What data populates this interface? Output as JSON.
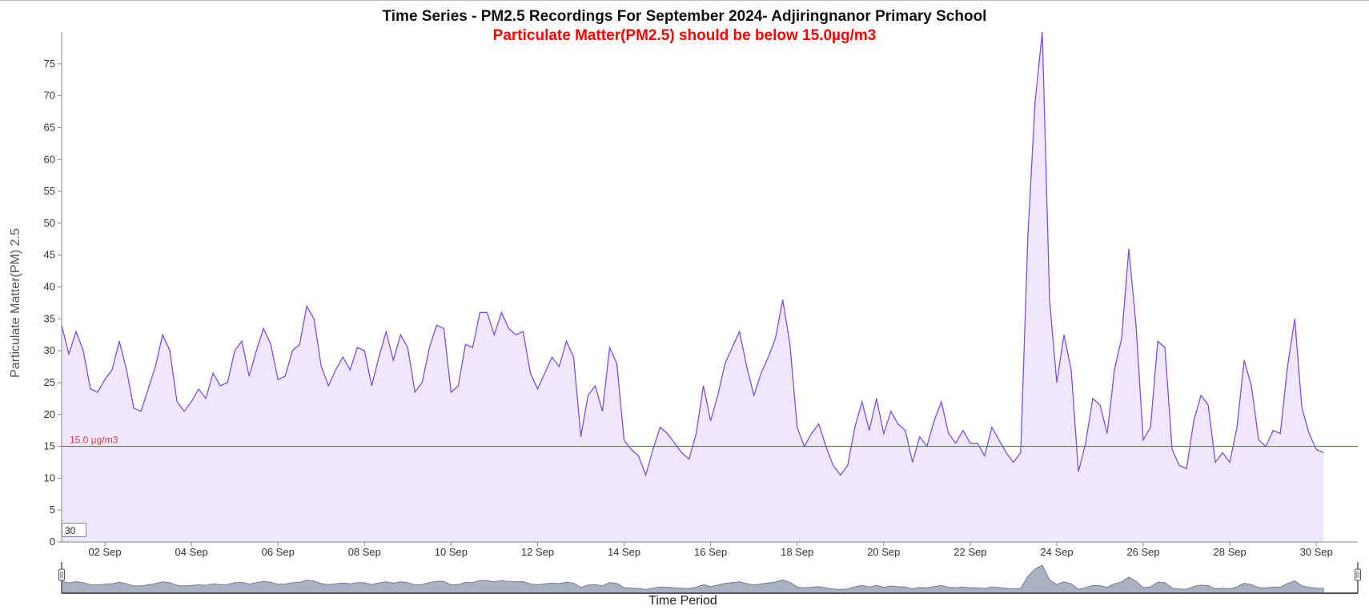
{
  "chart_data": {
    "type": "area",
    "title": "Time Series - PM2.5 Recordings For September 2024- Adjiringnanor Primary School",
    "subtitle": "Particulate Matter(PM2.5) should be below 15.0µg/m3",
    "xlabel": "Time Period",
    "ylabel": "Particulate Matter(PM) 2.5",
    "xlim": [
      "2024-09-01T00:00",
      "2024-09-30T23:00"
    ],
    "ylim": [
      0,
      80
    ],
    "yticks": [
      0,
      5,
      10,
      15,
      20,
      25,
      30,
      35,
      40,
      45,
      50,
      55,
      60,
      65,
      70,
      75
    ],
    "xticks": [
      "02 Sep",
      "04 Sep",
      "06 Sep",
      "08 Sep",
      "10 Sep",
      "12 Sep",
      "14 Sep",
      "16 Sep",
      "18 Sep",
      "20 Sep",
      "22 Sep",
      "24 Sep",
      "26 Sep",
      "28 Sep",
      "30 Sep"
    ],
    "threshold": {
      "value": 15.0,
      "label": "15.0 µg/m3",
      "color": "#e8394b"
    },
    "grid": false,
    "colors": {
      "line": "#7b4ff0",
      "fill": "#efe8fd",
      "subtitle": "#ff0000",
      "navigator_fill": "#a9b2c2",
      "navigator_line": "#6f7f98"
    },
    "series": [
      {
        "points": [
          [
            "2024-09-01T00:00",
            34
          ],
          [
            "2024-09-01T04:00",
            29.5
          ],
          [
            "2024-09-01T08:00",
            33
          ],
          [
            "2024-09-01T12:00",
            30
          ],
          [
            "2024-09-01T16:00",
            24
          ],
          [
            "2024-09-01T20:00",
            23.5
          ],
          [
            "2024-09-02T00:00",
            25.5
          ],
          [
            "2024-09-02T04:00",
            27
          ],
          [
            "2024-09-02T08:00",
            31.5
          ],
          [
            "2024-09-02T12:00",
            27
          ],
          [
            "2024-09-02T16:00",
            21
          ],
          [
            "2024-09-02T20:00",
            20.5
          ],
          [
            "2024-09-03T00:00",
            24
          ],
          [
            "2024-09-03T04:00",
            27.5
          ],
          [
            "2024-09-03T08:00",
            32.5
          ],
          [
            "2024-09-03T12:00",
            30
          ],
          [
            "2024-09-03T16:00",
            22
          ],
          [
            "2024-09-03T20:00",
            20.5
          ],
          [
            "2024-09-04T00:00",
            22
          ],
          [
            "2024-09-04T04:00",
            24
          ],
          [
            "2024-09-04T08:00",
            22.5
          ],
          [
            "2024-09-04T12:00",
            26.5
          ],
          [
            "2024-09-04T16:00",
            24.5
          ],
          [
            "2024-09-04T20:00",
            25
          ],
          [
            "2024-09-05T00:00",
            30
          ],
          [
            "2024-09-05T04:00",
            31.5
          ],
          [
            "2024-09-05T08:00",
            26
          ],
          [
            "2024-09-05T12:00",
            30
          ],
          [
            "2024-09-05T16:00",
            33.5
          ],
          [
            "2024-09-05T20:00",
            31
          ],
          [
            "2024-09-06T00:00",
            25.5
          ],
          [
            "2024-09-06T04:00",
            26
          ],
          [
            "2024-09-06T08:00",
            30
          ],
          [
            "2024-09-06T12:00",
            31
          ],
          [
            "2024-09-06T16:00",
            37
          ],
          [
            "2024-09-06T20:00",
            35
          ],
          [
            "2024-09-07T00:00",
            27.5
          ],
          [
            "2024-09-07T04:00",
            24.5
          ],
          [
            "2024-09-07T08:00",
            27
          ],
          [
            "2024-09-07T12:00",
            29
          ],
          [
            "2024-09-07T16:00",
            27
          ],
          [
            "2024-09-07T20:00",
            30.5
          ],
          [
            "2024-09-08T00:00",
            30
          ],
          [
            "2024-09-08T04:00",
            24.5
          ],
          [
            "2024-09-08T08:00",
            29
          ],
          [
            "2024-09-08T12:00",
            33
          ],
          [
            "2024-09-08T16:00",
            28.5
          ],
          [
            "2024-09-08T20:00",
            32.5
          ],
          [
            "2024-09-09T00:00",
            30.5
          ],
          [
            "2024-09-09T04:00",
            23.5
          ],
          [
            "2024-09-09T08:00",
            25
          ],
          [
            "2024-09-09T12:00",
            30.5
          ],
          [
            "2024-09-09T16:00",
            34
          ],
          [
            "2024-09-09T20:00",
            33.5
          ],
          [
            "2024-09-10T00:00",
            23.5
          ],
          [
            "2024-09-10T04:00",
            24.5
          ],
          [
            "2024-09-10T08:00",
            31
          ],
          [
            "2024-09-10T12:00",
            30.5
          ],
          [
            "2024-09-10T16:00",
            36
          ],
          [
            "2024-09-10T20:00",
            36
          ],
          [
            "2024-09-11T00:00",
            32.5
          ],
          [
            "2024-09-11T04:00",
            36
          ],
          [
            "2024-09-11T08:00",
            33.5
          ],
          [
            "2024-09-11T12:00",
            32.5
          ],
          [
            "2024-09-11T16:00",
            33
          ],
          [
            "2024-09-11T20:00",
            26.5
          ],
          [
            "2024-09-12T00:00",
            24
          ],
          [
            "2024-09-12T04:00",
            26.5
          ],
          [
            "2024-09-12T08:00",
            29
          ],
          [
            "2024-09-12T12:00",
            27.5
          ],
          [
            "2024-09-12T16:00",
            31.5
          ],
          [
            "2024-09-12T20:00",
            29
          ],
          [
            "2024-09-13T00:00",
            16.5
          ],
          [
            "2024-09-13T04:00",
            23
          ],
          [
            "2024-09-13T08:00",
            24.5
          ],
          [
            "2024-09-13T12:00",
            20.5
          ],
          [
            "2024-09-13T16:00",
            30.5
          ],
          [
            "2024-09-13T20:00",
            28
          ],
          [
            "2024-09-14T00:00",
            16
          ],
          [
            "2024-09-14T04:00",
            14.5
          ],
          [
            "2024-09-14T08:00",
            13.5
          ],
          [
            "2024-09-14T12:00",
            10.5
          ],
          [
            "2024-09-14T16:00",
            14.5
          ],
          [
            "2024-09-14T20:00",
            18
          ],
          [
            "2024-09-15T00:00",
            17
          ],
          [
            "2024-09-15T04:00",
            15.5
          ],
          [
            "2024-09-15T08:00",
            14
          ],
          [
            "2024-09-15T12:00",
            13
          ],
          [
            "2024-09-15T16:00",
            17
          ],
          [
            "2024-09-15T20:00",
            24.5
          ],
          [
            "2024-09-16T00:00",
            19
          ],
          [
            "2024-09-16T04:00",
            23
          ],
          [
            "2024-09-16T08:00",
            28
          ],
          [
            "2024-09-16T12:00",
            30.5
          ],
          [
            "2024-09-16T16:00",
            33
          ],
          [
            "2024-09-16T20:00",
            27.5
          ],
          [
            "2024-09-17T00:00",
            23
          ],
          [
            "2024-09-17T04:00",
            26.5
          ],
          [
            "2024-09-17T08:00",
            29
          ],
          [
            "2024-09-17T12:00",
            32
          ],
          [
            "2024-09-17T16:00",
            38
          ],
          [
            "2024-09-17T20:00",
            31
          ],
          [
            "2024-09-18T00:00",
            18
          ],
          [
            "2024-09-18T04:00",
            15
          ],
          [
            "2024-09-18T08:00",
            17
          ],
          [
            "2024-09-18T12:00",
            18.5
          ],
          [
            "2024-09-18T16:00",
            15
          ],
          [
            "2024-09-18T20:00",
            12
          ],
          [
            "2024-09-19T00:00",
            10.5
          ],
          [
            "2024-09-19T04:00",
            12
          ],
          [
            "2024-09-19T08:00",
            18
          ],
          [
            "2024-09-19T12:00",
            22
          ],
          [
            "2024-09-19T16:00",
            17.5
          ],
          [
            "2024-09-19T20:00",
            22.5
          ],
          [
            "2024-09-20T00:00",
            17
          ],
          [
            "2024-09-20T04:00",
            20.5
          ],
          [
            "2024-09-20T08:00",
            18.5
          ],
          [
            "2024-09-20T12:00",
            17.5
          ],
          [
            "2024-09-20T16:00",
            12.5
          ],
          [
            "2024-09-20T20:00",
            16.5
          ],
          [
            "2024-09-21T00:00",
            15
          ],
          [
            "2024-09-21T04:00",
            19
          ],
          [
            "2024-09-21T08:00",
            22
          ],
          [
            "2024-09-21T12:00",
            17
          ],
          [
            "2024-09-21T16:00",
            15.5
          ],
          [
            "2024-09-21T20:00",
            17.5
          ],
          [
            "2024-09-22T00:00",
            15.5
          ],
          [
            "2024-09-22T04:00",
            15.5
          ],
          [
            "2024-09-22T08:00",
            13.5
          ],
          [
            "2024-09-22T12:00",
            18
          ],
          [
            "2024-09-22T16:00",
            16
          ],
          [
            "2024-09-22T20:00",
            14
          ],
          [
            "2024-09-23T00:00",
            12.5
          ],
          [
            "2024-09-23T04:00",
            14
          ],
          [
            "2024-09-23T08:00",
            48
          ],
          [
            "2024-09-23T12:00",
            69
          ],
          [
            "2024-09-23T16:00",
            80
          ],
          [
            "2024-09-23T20:00",
            38
          ],
          [
            "2024-09-24T00:00",
            25
          ],
          [
            "2024-09-24T04:00",
            32.5
          ],
          [
            "2024-09-24T08:00",
            27
          ],
          [
            "2024-09-24T12:00",
            11
          ],
          [
            "2024-09-24T16:00",
            15.5
          ],
          [
            "2024-09-24T20:00",
            22.5
          ],
          [
            "2024-09-25T00:00",
            21.5
          ],
          [
            "2024-09-25T04:00",
            17
          ],
          [
            "2024-09-25T08:00",
            27
          ],
          [
            "2024-09-25T12:00",
            32
          ],
          [
            "2024-09-25T16:00",
            46
          ],
          [
            "2024-09-25T20:00",
            34
          ],
          [
            "2024-09-26T00:00",
            16
          ],
          [
            "2024-09-26T04:00",
            18
          ],
          [
            "2024-09-26T08:00",
            31.5
          ],
          [
            "2024-09-26T12:00",
            30.5
          ],
          [
            "2024-09-26T16:00",
            14.5
          ],
          [
            "2024-09-26T20:00",
            12
          ],
          [
            "2024-09-27T00:00",
            11.5
          ],
          [
            "2024-09-27T04:00",
            19
          ],
          [
            "2024-09-27T08:00",
            23
          ],
          [
            "2024-09-27T12:00",
            21.5
          ],
          [
            "2024-09-27T16:00",
            12.5
          ],
          [
            "2024-09-27T20:00",
            14
          ],
          [
            "2024-09-28T00:00",
            12.5
          ],
          [
            "2024-09-28T04:00",
            18
          ],
          [
            "2024-09-28T08:00",
            28.5
          ],
          [
            "2024-09-28T12:00",
            24.5
          ],
          [
            "2024-09-28T16:00",
            16
          ],
          [
            "2024-09-28T20:00",
            15
          ],
          [
            "2024-09-29T00:00",
            17.5
          ],
          [
            "2024-09-29T04:00",
            17
          ],
          [
            "2024-09-29T08:00",
            27.5
          ],
          [
            "2024-09-29T12:00",
            35
          ],
          [
            "2024-09-29T16:00",
            21
          ],
          [
            "2024-09-29T20:00",
            17
          ],
          [
            "2024-09-30T00:00",
            14.5
          ],
          [
            "2024-09-30T04:00",
            14
          ]
        ]
      }
    ],
    "navigator": {
      "range_start": "2024-09-01T00:00",
      "range_end": "2024-09-30T04:00"
    },
    "controls": {
      "rolling_window_value": "30"
    }
  }
}
